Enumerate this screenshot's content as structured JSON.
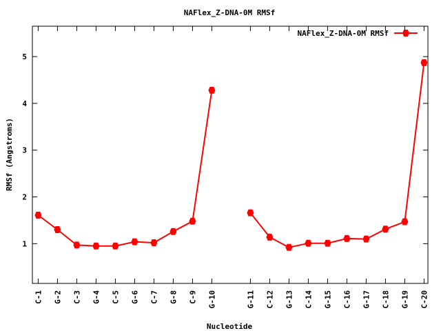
{
  "chart_data": {
    "type": "line",
    "title": "NAFlex_Z-DNA-0M RMSf",
    "xlabel": "Nucleotide",
    "ylabel": "RMSf (Angstroms)",
    "ylim": [
      0.15,
      5.65
    ],
    "yticks": [
      1,
      2,
      3,
      4,
      5
    ],
    "grid": false,
    "legend": "top-right",
    "x_positions": [
      1,
      2,
      3,
      4,
      5,
      6,
      7,
      8,
      9,
      10,
      12,
      13,
      14,
      15,
      16,
      17,
      18,
      19,
      20,
      21
    ],
    "xlim": [
      0.7,
      21.2
    ],
    "categories": [
      "C-1",
      "G-2",
      "C-3",
      "G-4",
      "C-5",
      "G-6",
      "C-7",
      "G-8",
      "C-9",
      "G-10",
      "G-11",
      "C-12",
      "G-13",
      "C-14",
      "G-15",
      "C-16",
      "G-17",
      "C-18",
      "G-19",
      "C-20"
    ],
    "series": [
      {
        "name": "NAFlex_Z-DNA-0M RMSf",
        "color": "#ff0000",
        "segments": [
          {
            "values": [
              1.61,
              1.3,
              0.97,
              0.95,
              0.95,
              1.04,
              1.02,
              1.26,
              1.48,
              4.28
            ]
          },
          {
            "values": [
              1.66,
              1.14,
              0.92,
              1.01,
              1.01,
              1.11,
              1.1,
              1.31,
              1.47,
              4.87
            ]
          }
        ]
      }
    ]
  }
}
